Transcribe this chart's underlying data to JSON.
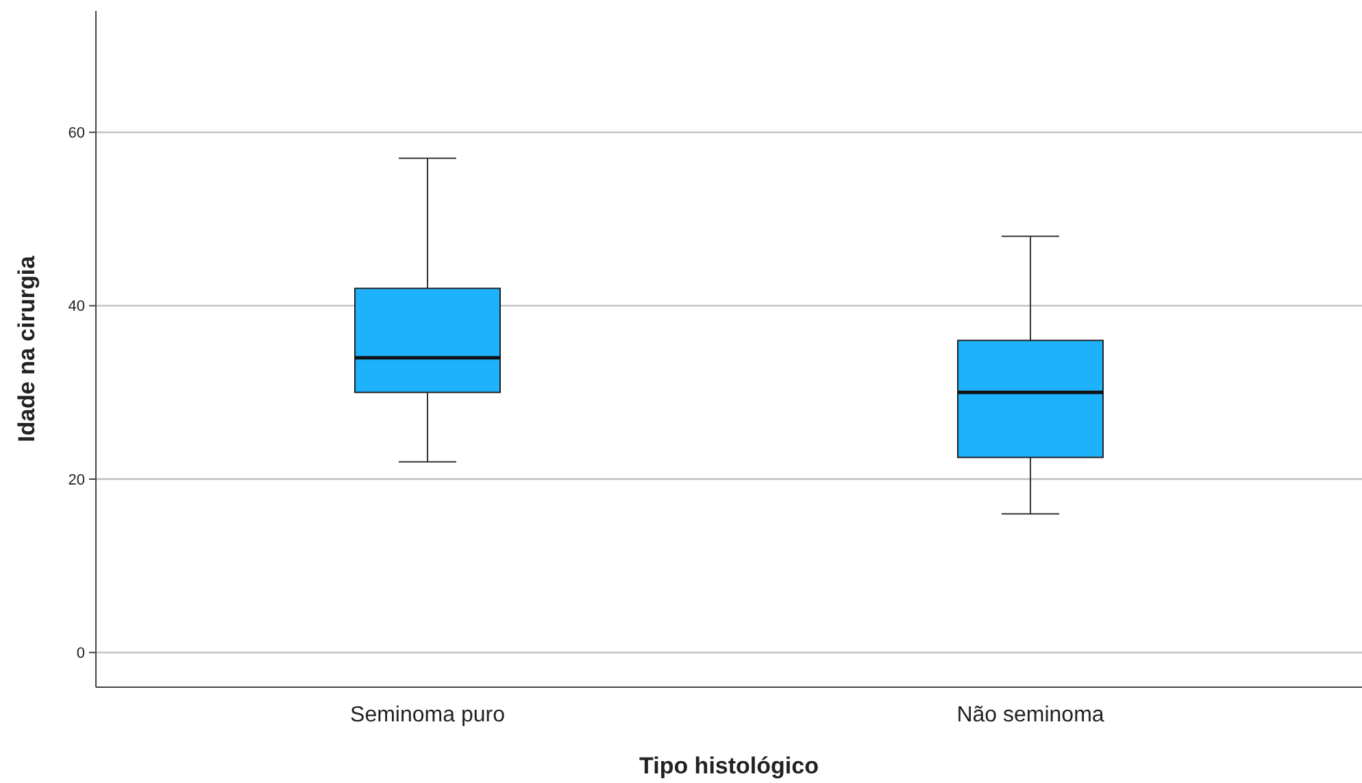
{
  "chart_data": {
    "type": "box",
    "xlabel": "Tipo histológico",
    "ylabel": "Idade na cirurgia",
    "categories": [
      "Seminoma puro",
      "Não seminoma"
    ],
    "boxes": [
      {
        "low": 22,
        "q1": 30,
        "median": 34,
        "q3": 42,
        "high": 57
      },
      {
        "low": 16,
        "q1": 22.5,
        "median": 30,
        "q3": 36,
        "high": 48
      }
    ],
    "color": "#1eb1fc",
    "ylim": [
      -4,
      74
    ],
    "yticks": [
      0,
      20,
      40,
      60
    ],
    "grid": "y"
  }
}
